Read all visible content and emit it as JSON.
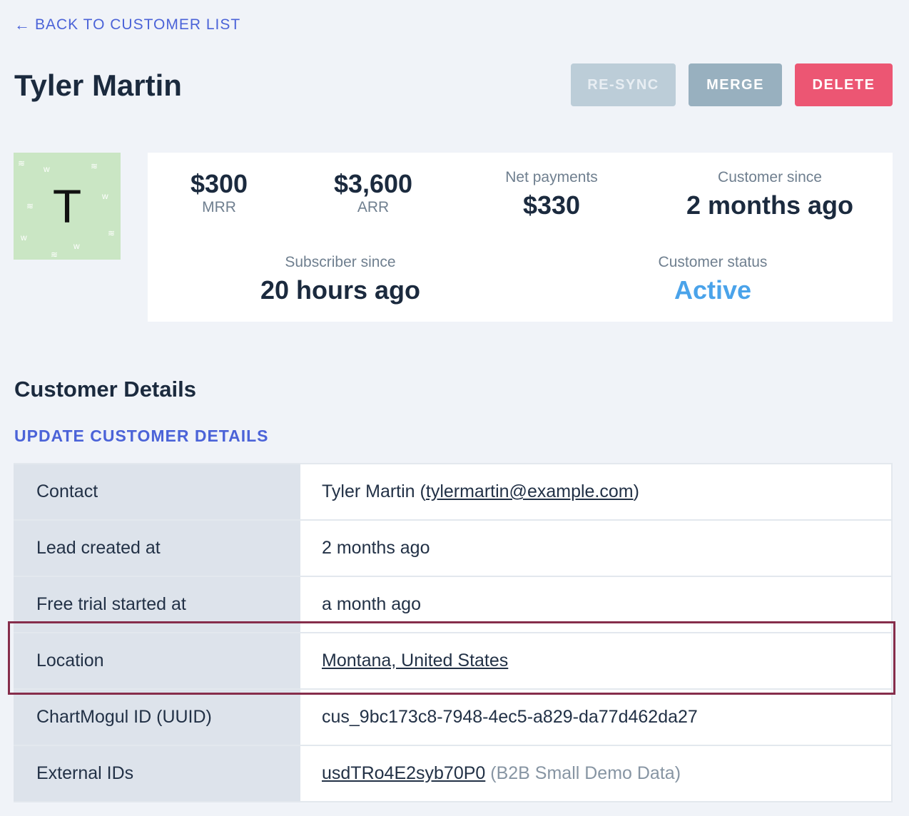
{
  "nav": {
    "back_label": "BACK TO CUSTOMER LIST"
  },
  "header": {
    "title": "Tyler Martin",
    "buttons": {
      "resync": "RE-SYNC",
      "merge": "MERGE",
      "delete": "DELETE"
    }
  },
  "avatar": {
    "initial": "T"
  },
  "stats": {
    "mrr": {
      "value": "$300",
      "label": "MRR"
    },
    "arr": {
      "value": "$3,600",
      "label": "ARR"
    },
    "net_payments": {
      "label": "Net payments",
      "value": "$330"
    },
    "customer_since": {
      "label": "Customer since",
      "value": "2 months ago"
    },
    "subscriber_since": {
      "label": "Subscriber since",
      "value": "20 hours ago"
    },
    "customer_status": {
      "label": "Customer status",
      "value": "Active"
    }
  },
  "details": {
    "title": "Customer Details",
    "update_label": "UPDATE CUSTOMER DETAILS",
    "rows": [
      {
        "key": "Contact",
        "name": "Tyler Martin",
        "email": "tylermartin@example.com"
      },
      {
        "key": "Lead created at",
        "value": "2 months ago"
      },
      {
        "key": "Free trial started at",
        "value": "a month ago"
      },
      {
        "key": "Location",
        "value": "Montana, United States"
      },
      {
        "key": "ChartMogul ID (UUID)",
        "value": "cus_9bc173c8-7948-4ec5-a829-da77d462da27"
      },
      {
        "key": "External IDs",
        "value": "usdTRo4E2syb70P0",
        "source": "(B2B Small Demo Data)"
      }
    ]
  },
  "colors": {
    "accent": "#4b63d8",
    "delete": "#ec5673",
    "active": "#4aa3ea",
    "highlight": "#862d4b"
  }
}
